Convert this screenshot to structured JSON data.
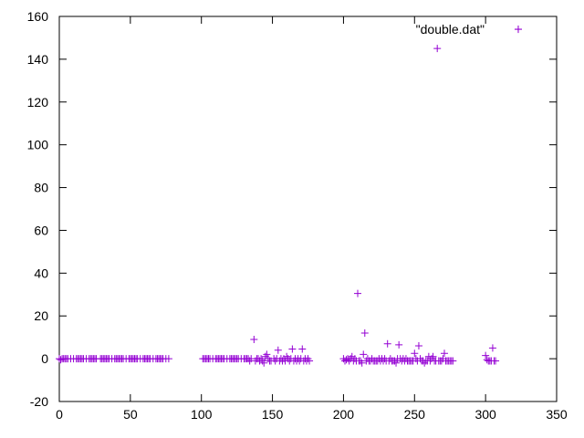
{
  "chart_data": {
    "type": "scatter",
    "marker": "plus",
    "series": [
      {
        "name": "\"double.dat\"",
        "color": "#9400d3",
        "points": [
          [
            0,
            0
          ],
          [
            1,
            -0.5
          ],
          [
            2,
            0
          ],
          [
            3,
            0
          ],
          [
            4,
            0
          ],
          [
            5,
            0
          ],
          [
            6,
            0
          ],
          [
            8,
            0
          ],
          [
            10,
            0
          ],
          [
            12,
            0
          ],
          [
            13,
            0
          ],
          [
            14,
            0
          ],
          [
            15,
            0
          ],
          [
            16,
            0
          ],
          [
            17,
            0
          ],
          [
            19,
            0
          ],
          [
            21,
            0
          ],
          [
            22,
            0
          ],
          [
            23,
            0
          ],
          [
            24,
            0
          ],
          [
            25,
            0
          ],
          [
            26,
            0
          ],
          [
            29,
            0
          ],
          [
            30,
            0
          ],
          [
            31,
            0
          ],
          [
            32,
            0
          ],
          [
            33,
            0
          ],
          [
            34,
            0
          ],
          [
            35,
            0
          ],
          [
            37,
            0
          ],
          [
            39,
            0
          ],
          [
            40,
            0
          ],
          [
            41,
            0
          ],
          [
            42,
            0
          ],
          [
            43,
            0
          ],
          [
            44,
            0
          ],
          [
            45,
            0
          ],
          [
            47,
            0
          ],
          [
            49,
            0
          ],
          [
            50,
            0
          ],
          [
            51,
            0
          ],
          [
            52,
            0
          ],
          [
            53,
            0
          ],
          [
            54,
            0
          ],
          [
            55,
            0
          ],
          [
            57,
            0
          ],
          [
            59,
            0
          ],
          [
            60,
            0
          ],
          [
            61,
            0
          ],
          [
            62,
            0
          ],
          [
            63,
            0
          ],
          [
            64,
            0
          ],
          [
            66,
            0
          ],
          [
            68,
            0
          ],
          [
            69,
            0
          ],
          [
            70,
            0
          ],
          [
            71,
            0
          ],
          [
            72,
            0
          ],
          [
            73,
            0
          ],
          [
            75,
            0
          ],
          [
            77,
            0
          ],
          [
            101,
            0
          ],
          [
            102,
            0
          ],
          [
            103,
            0
          ],
          [
            104,
            0
          ],
          [
            105,
            0
          ],
          [
            106,
            0
          ],
          [
            108,
            0
          ],
          [
            110,
            0
          ],
          [
            111,
            0
          ],
          [
            112,
            0
          ],
          [
            113,
            0
          ],
          [
            114,
            0
          ],
          [
            115,
            0
          ],
          [
            116,
            0
          ],
          [
            118,
            0
          ],
          [
            120,
            0
          ],
          [
            121,
            0
          ],
          [
            122,
            0
          ],
          [
            123,
            0
          ],
          [
            124,
            0
          ],
          [
            125,
            0
          ],
          [
            126,
            0
          ],
          [
            128,
            0
          ],
          [
            130,
            0
          ],
          [
            131,
            0
          ],
          [
            132,
            0
          ],
          [
            133,
            0
          ],
          [
            134,
            -1
          ],
          [
            135,
            0
          ],
          [
            137,
            9
          ],
          [
            138,
            -1
          ],
          [
            139,
            0
          ],
          [
            140,
            0
          ],
          [
            141,
            -1
          ],
          [
            142,
            0
          ],
          [
            143,
            -1
          ],
          [
            144,
            -2
          ],
          [
            145,
            1
          ],
          [
            146,
            2
          ],
          [
            147,
            0
          ],
          [
            148,
            -1
          ],
          [
            149,
            -1
          ],
          [
            151,
            0
          ],
          [
            152,
            -1
          ],
          [
            153,
            0
          ],
          [
            154,
            4
          ],
          [
            155,
            -1
          ],
          [
            156,
            0
          ],
          [
            157,
            -1
          ],
          [
            158,
            0
          ],
          [
            159,
            -1
          ],
          [
            160,
            1
          ],
          [
            161,
            0
          ],
          [
            162,
            -1
          ],
          [
            163,
            0
          ],
          [
            164,
            4.5
          ],
          [
            165,
            -1
          ],
          [
            166,
            0
          ],
          [
            167,
            -1
          ],
          [
            168,
            0
          ],
          [
            169,
            -1
          ],
          [
            170,
            0
          ],
          [
            171,
            4.5
          ],
          [
            172,
            -1
          ],
          [
            173,
            0
          ],
          [
            174,
            -1
          ],
          [
            175,
            0
          ],
          [
            176,
            -1
          ],
          [
            200,
            0
          ],
          [
            201,
            -1
          ],
          [
            202,
            -0.5
          ],
          [
            203,
            0
          ],
          [
            204,
            -1
          ],
          [
            205,
            0
          ],
          [
            206,
            1
          ],
          [
            207,
            -1
          ],
          [
            208,
            0
          ],
          [
            209,
            -1
          ],
          [
            210,
            30.5
          ],
          [
            211,
            -1
          ],
          [
            212,
            -1
          ],
          [
            213,
            -2
          ],
          [
            214,
            2
          ],
          [
            215,
            12
          ],
          [
            216,
            -1
          ],
          [
            217,
            0
          ],
          [
            218,
            -1
          ],
          [
            219,
            -1
          ],
          [
            220,
            0
          ],
          [
            221,
            -1
          ],
          [
            222,
            -1
          ],
          [
            223,
            -1
          ],
          [
            224,
            -1
          ],
          [
            225,
            0
          ],
          [
            226,
            -1
          ],
          [
            227,
            0
          ],
          [
            228,
            -1
          ],
          [
            229,
            0
          ],
          [
            230,
            -1
          ],
          [
            231,
            7
          ],
          [
            232,
            -1
          ],
          [
            233,
            0
          ],
          [
            234,
            -1
          ],
          [
            235,
            -1
          ],
          [
            236,
            -1
          ],
          [
            237,
            -2
          ],
          [
            238,
            0
          ],
          [
            239,
            6.5
          ],
          [
            240,
            0
          ],
          [
            241,
            -1
          ],
          [
            242,
            0
          ],
          [
            243,
            -1
          ],
          [
            244,
            0
          ],
          [
            245,
            -1
          ],
          [
            246,
            -1
          ],
          [
            247,
            -1
          ],
          [
            248,
            -1
          ],
          [
            249,
            -1
          ],
          [
            250,
            2.5
          ],
          [
            251,
            0
          ],
          [
            252,
            -1
          ],
          [
            253,
            6
          ],
          [
            254,
            0
          ],
          [
            255,
            -1
          ],
          [
            256,
            -1
          ],
          [
            257,
            -2
          ],
          [
            258,
            -1
          ],
          [
            259,
            -1
          ],
          [
            260,
            1
          ],
          [
            261,
            -1
          ],
          [
            262,
            0
          ],
          [
            263,
            1
          ],
          [
            264,
            -1
          ],
          [
            265,
            -1
          ],
          [
            266,
            145
          ],
          [
            267,
            -1
          ],
          [
            268,
            -1
          ],
          [
            269,
            -1
          ],
          [
            270,
            0
          ],
          [
            271,
            2.5
          ],
          [
            272,
            -1
          ],
          [
            273,
            -1
          ],
          [
            274,
            -1
          ],
          [
            275,
            -1
          ],
          [
            276,
            -1
          ],
          [
            277,
            -1
          ],
          [
            300,
            1.5
          ],
          [
            301,
            -0.5
          ],
          [
            302,
            -1
          ],
          [
            303,
            -1
          ],
          [
            304,
            -1
          ],
          [
            305,
            5
          ],
          [
            306,
            -1
          ],
          [
            307,
            -1
          ],
          [
            323,
            154
          ]
        ]
      }
    ],
    "xlim": [
      0,
      350
    ],
    "ylim": [
      -20,
      160
    ],
    "xticks": [
      0,
      50,
      100,
      150,
      200,
      250,
      300,
      350
    ],
    "yticks": [
      -20,
      0,
      20,
      40,
      60,
      80,
      100,
      120,
      140,
      160
    ],
    "grid": false,
    "legend_position": "top-right"
  }
}
